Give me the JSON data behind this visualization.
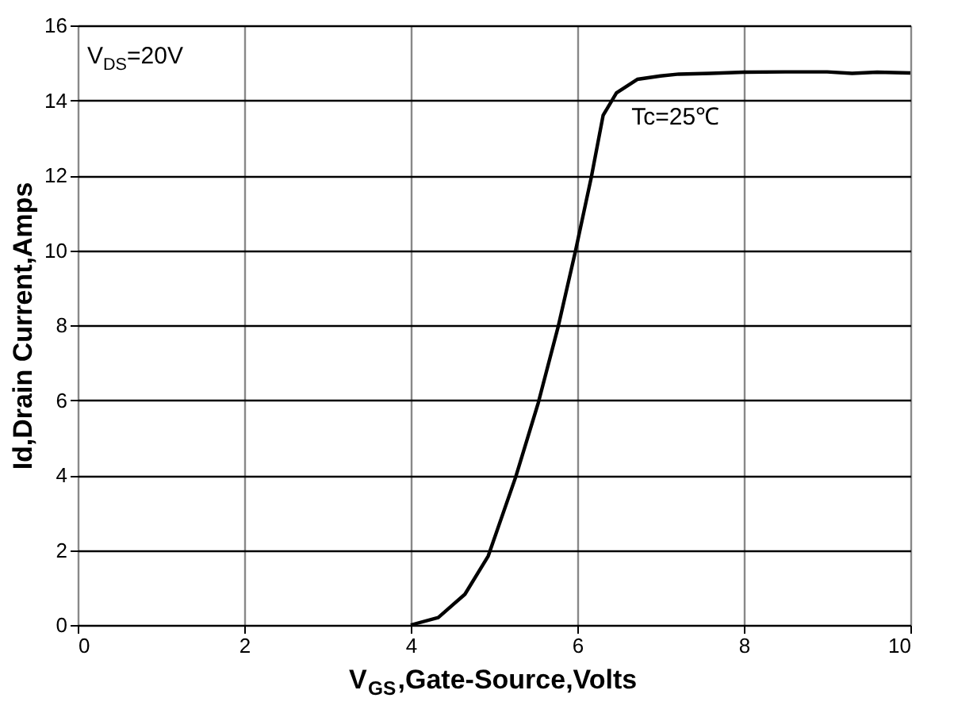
{
  "chart_data": {
    "type": "line",
    "xlabel": "V$_{GS}$,Gate-Source,Volts",
    "ylabel": "Id,Drain Current,Amps",
    "x": [
      4.0,
      4.33,
      4.65,
      4.93,
      5.26,
      5.53,
      5.77,
      5.98,
      6.17,
      6.31,
      6.47,
      6.72,
      7.0,
      7.22,
      7.6,
      8.0,
      8.5,
      9.0,
      9.3,
      9.6,
      10.0
    ],
    "series": [
      {
        "color": "#000000",
        "values": [
          0.0,
          0.2,
          0.82,
          1.84,
          3.95,
          5.92,
          7.96,
          10.0,
          11.97,
          13.6,
          14.2,
          14.56,
          14.65,
          14.7,
          14.72,
          14.75,
          14.76,
          14.76,
          14.72,
          14.75,
          14.73
        ]
      }
    ],
    "xlim": [
      0,
      10
    ],
    "ylim": [
      0,
      16
    ],
    "xticks": [
      0,
      2,
      4,
      6,
      8,
      10
    ],
    "yticks": [
      0,
      2,
      4,
      6,
      8,
      10,
      12,
      14,
      16
    ],
    "grid": true,
    "marker": "none",
    "line_style": "solid",
    "annotations": [
      "V$_{DS}$=20V",
      "Tc=25℃"
    ]
  }
}
